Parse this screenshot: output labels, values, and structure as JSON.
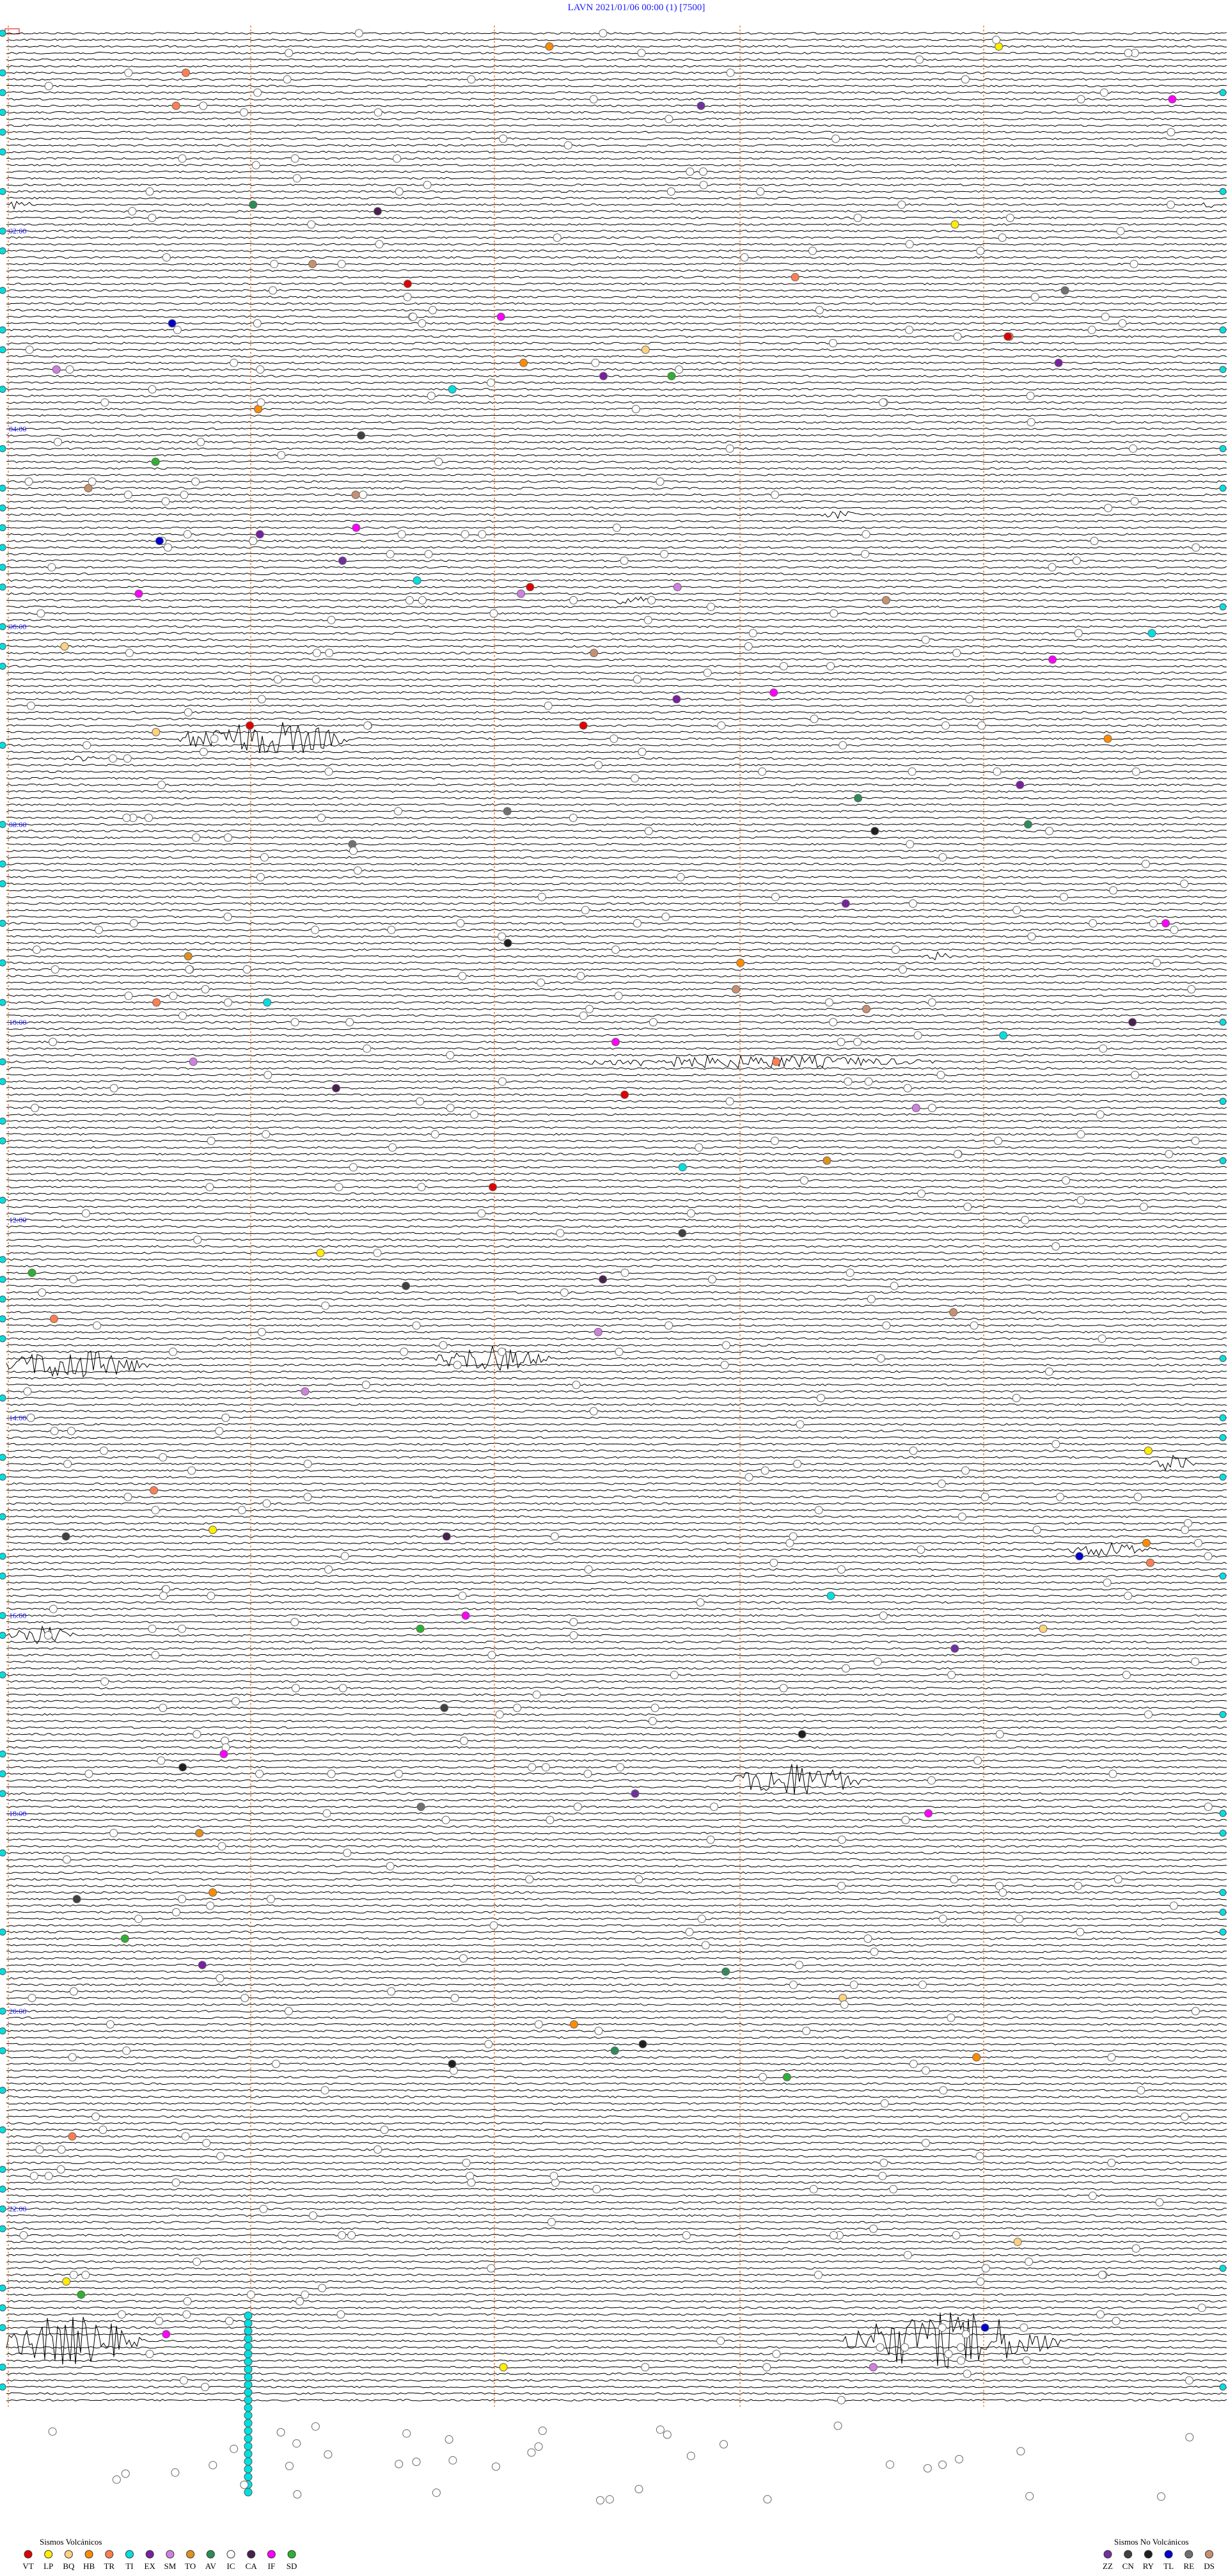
{
  "header": {
    "title": "LAVN     2021/01/06 00:00     (1)     [7500]"
  },
  "hour_labels": [
    "02:00",
    "04:00",
    "06:00",
    "08:00",
    "10:00",
    "12:00",
    "14:00",
    "16:00",
    "18:00",
    "20:00",
    "22:00"
  ],
  "legend": {
    "volcanic": {
      "title": "Sismos Volcánicos",
      "items": [
        {
          "code": "VT",
          "color": "#e00000"
        },
        {
          "code": "LP",
          "color": "#ffee00"
        },
        {
          "code": "BQ",
          "color": "#ffd27f"
        },
        {
          "code": "HB",
          "color": "#ff8c00"
        },
        {
          "code": "TR",
          "color": "#ff7f50"
        },
        {
          "code": "TI",
          "color": "#00e0e0"
        },
        {
          "code": "EX",
          "color": "#7a1fa0"
        },
        {
          "code": "SM",
          "color": "#d080e0"
        },
        {
          "code": "TO",
          "color": "#e09020"
        },
        {
          "code": "AV",
          "color": "#2e8b57"
        },
        {
          "code": "IC",
          "color": "#ffffff"
        },
        {
          "code": "CA",
          "color": "#4a2050"
        },
        {
          "code": "IF",
          "color": "#ff00ff"
        },
        {
          "code": "SD",
          "color": "#30b030"
        }
      ]
    },
    "non_volcanic": {
      "title": "Sismos No Volcánicos",
      "items": [
        {
          "code": "ZZ",
          "color": "#7030a0"
        },
        {
          "code": "CN",
          "color": "#404040"
        },
        {
          "code": "RY",
          "color": "#202020"
        },
        {
          "code": "TL",
          "color": "#0000d0"
        },
        {
          "code": "RE",
          "color": "#707070"
        },
        {
          "code": "DS",
          "color": "#c89070"
        }
      ]
    }
  }
}
